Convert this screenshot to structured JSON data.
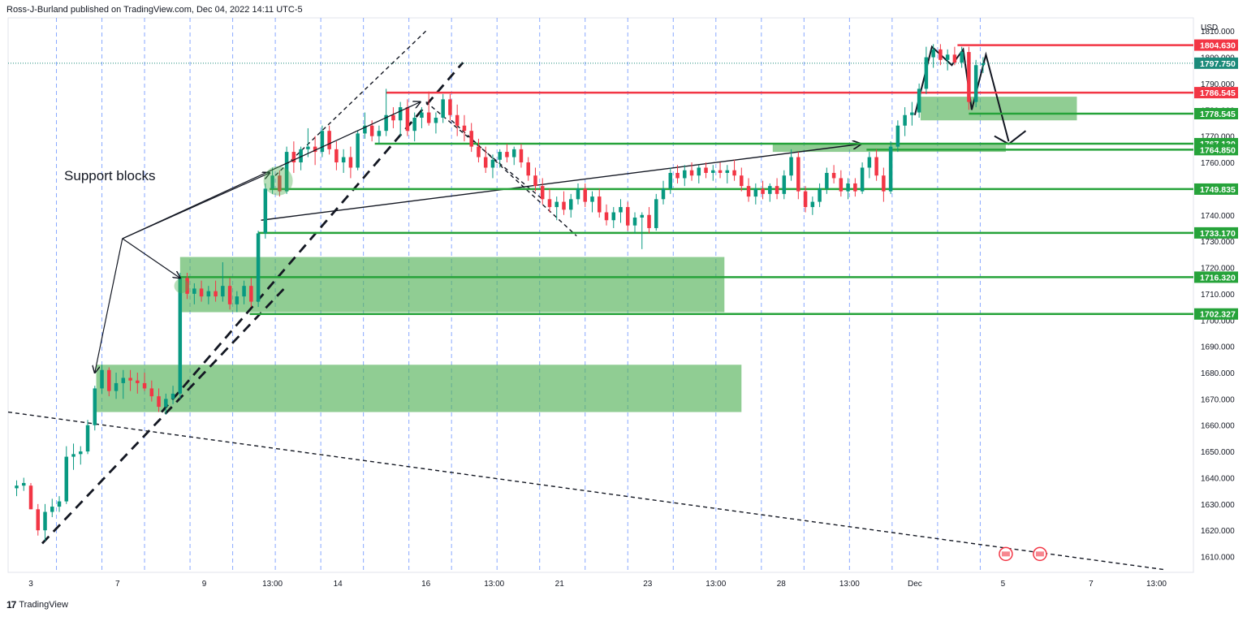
{
  "header": {
    "publisher_line": "Ross-J-Burland published on TradingView.com, Dec 04, 2022 14:11 UTC-5"
  },
  "footer": {
    "brand": "TradingView",
    "logo_icon": "tradingview-logo-icon"
  },
  "colors": {
    "up": "#089981",
    "down": "#f23645",
    "zone": "#4caf50",
    "support_line": "#26a33a",
    "resistance_line": "#f23645",
    "current_price": "#1b8a7a"
  },
  "chart_data": {
    "type": "candlestick",
    "currency": "USD",
    "y_range": [
      1604,
      1815
    ],
    "y_ticks": [
      1610,
      1620,
      1630,
      1640,
      1650,
      1660,
      1670,
      1680,
      1690,
      1700,
      1710,
      1720,
      1730,
      1740,
      1750,
      1760,
      1770,
      1780,
      1790,
      1800,
      1810
    ],
    "x_ticks": [
      {
        "label": "3",
        "x": 0.6
      },
      {
        "label": "7",
        "x": 3.65
      },
      {
        "label": "9",
        "x": 6.7
      },
      {
        "label": "13:00",
        "x": 9.1
      },
      {
        "label": "14",
        "x": 11.4
      },
      {
        "label": "16",
        "x": 14.5
      },
      {
        "label": "13:00",
        "x": 16.9
      },
      {
        "label": "21",
        "x": 19.2
      },
      {
        "label": "23",
        "x": 22.3
      },
      {
        "label": "13:00",
        "x": 24.7
      },
      {
        "label": "28",
        "x": 27.0
      },
      {
        "label": "13:00",
        "x": 29.4
      },
      {
        "label": "Dec",
        "x": 31.7
      },
      {
        "label": "5",
        "x": 34.8
      },
      {
        "label": "7",
        "x": 37.9
      },
      {
        "label": "13:00",
        "x": 40.2
      }
    ],
    "session_lines": [
      1.5,
      3.1,
      4.6,
      6.2,
      7.7,
      9.2,
      10.8,
      12.3,
      13.9,
      15.4,
      17.0,
      18.5,
      20.1,
      21.6,
      23.2,
      24.7,
      26.3,
      27.8,
      29.4,
      30.9,
      32.5,
      34.0
    ],
    "candles": [
      {
        "x": 0.1,
        "o": 1636,
        "h": 1639,
        "l": 1633,
        "c": 1637
      },
      {
        "x": 0.35,
        "o": 1637,
        "h": 1640,
        "l": 1635,
        "c": 1638
      },
      {
        "x": 0.6,
        "o": 1637,
        "h": 1638,
        "l": 1628,
        "c": 1628
      },
      {
        "x": 0.85,
        "o": 1628,
        "h": 1630,
        "l": 1618,
        "c": 1620
      },
      {
        "x": 1.1,
        "o": 1620,
        "h": 1630,
        "l": 1616,
        "c": 1627
      },
      {
        "x": 1.35,
        "o": 1627,
        "h": 1632,
        "l": 1625,
        "c": 1629
      },
      {
        "x": 1.6,
        "o": 1629,
        "h": 1633,
        "l": 1627,
        "c": 1631
      },
      {
        "x": 1.85,
        "o": 1631,
        "h": 1652,
        "l": 1630,
        "c": 1648
      },
      {
        "x": 2.1,
        "o": 1648,
        "h": 1653,
        "l": 1643,
        "c": 1649
      },
      {
        "x": 2.35,
        "o": 1649,
        "h": 1652,
        "l": 1645,
        "c": 1650
      },
      {
        "x": 2.6,
        "o": 1650,
        "h": 1662,
        "l": 1649,
        "c": 1660
      },
      {
        "x": 2.85,
        "o": 1660,
        "h": 1675,
        "l": 1658,
        "c": 1674
      },
      {
        "x": 3.1,
        "o": 1674,
        "h": 1683,
        "l": 1672,
        "c": 1681
      },
      {
        "x": 3.35,
        "o": 1681,
        "h": 1682,
        "l": 1671,
        "c": 1673
      },
      {
        "x": 3.6,
        "o": 1673,
        "h": 1680,
        "l": 1670,
        "c": 1676
      },
      {
        "x": 3.85,
        "o": 1676,
        "h": 1681,
        "l": 1670,
        "c": 1678
      },
      {
        "x": 4.1,
        "o": 1678,
        "h": 1681,
        "l": 1673,
        "c": 1677
      },
      {
        "x": 4.35,
        "o": 1677,
        "h": 1680,
        "l": 1672,
        "c": 1676
      },
      {
        "x": 4.6,
        "o": 1676,
        "h": 1680,
        "l": 1673,
        "c": 1674
      },
      {
        "x": 4.85,
        "o": 1674,
        "h": 1677,
        "l": 1669,
        "c": 1671
      },
      {
        "x": 5.1,
        "o": 1671,
        "h": 1674,
        "l": 1665,
        "c": 1667
      },
      {
        "x": 5.35,
        "o": 1667,
        "h": 1672,
        "l": 1664,
        "c": 1670
      },
      {
        "x": 5.6,
        "o": 1670,
        "h": 1675,
        "l": 1668,
        "c": 1672
      },
      {
        "x": 5.85,
        "o": 1672,
        "h": 1718,
        "l": 1670,
        "c": 1716
      },
      {
        "x": 6.1,
        "o": 1716,
        "h": 1718,
        "l": 1708,
        "c": 1710
      },
      {
        "x": 6.35,
        "o": 1710,
        "h": 1714,
        "l": 1706,
        "c": 1712
      },
      {
        "x": 6.6,
        "o": 1712,
        "h": 1715,
        "l": 1707,
        "c": 1709
      },
      {
        "x": 6.85,
        "o": 1709,
        "h": 1713,
        "l": 1706,
        "c": 1711
      },
      {
        "x": 7.1,
        "o": 1711,
        "h": 1715,
        "l": 1707,
        "c": 1709
      },
      {
        "x": 7.35,
        "o": 1709,
        "h": 1722,
        "l": 1707,
        "c": 1713
      },
      {
        "x": 7.6,
        "o": 1713,
        "h": 1716,
        "l": 1704,
        "c": 1706
      },
      {
        "x": 7.85,
        "o": 1706,
        "h": 1711,
        "l": 1703,
        "c": 1709
      },
      {
        "x": 8.1,
        "o": 1709,
        "h": 1715,
        "l": 1706,
        "c": 1713
      },
      {
        "x": 8.35,
        "o": 1713,
        "h": 1716,
        "l": 1705,
        "c": 1707
      },
      {
        "x": 8.6,
        "o": 1707,
        "h": 1734,
        "l": 1705,
        "c": 1733
      },
      {
        "x": 8.85,
        "o": 1733,
        "h": 1752,
        "l": 1731,
        "c": 1750
      },
      {
        "x": 9.1,
        "o": 1750,
        "h": 1758,
        "l": 1748,
        "c": 1755
      },
      {
        "x": 9.35,
        "o": 1755,
        "h": 1757,
        "l": 1747,
        "c": 1749
      },
      {
        "x": 9.6,
        "o": 1749,
        "h": 1766,
        "l": 1748,
        "c": 1764
      },
      {
        "x": 9.85,
        "o": 1764,
        "h": 1768,
        "l": 1756,
        "c": 1760
      },
      {
        "x": 10.1,
        "o": 1760,
        "h": 1766,
        "l": 1757,
        "c": 1765
      },
      {
        "x": 10.35,
        "o": 1765,
        "h": 1773,
        "l": 1762,
        "c": 1766
      },
      {
        "x": 10.6,
        "o": 1766,
        "h": 1770,
        "l": 1759,
        "c": 1764
      },
      {
        "x": 10.85,
        "o": 1764,
        "h": 1774,
        "l": 1762,
        "c": 1772
      },
      {
        "x": 11.1,
        "o": 1772,
        "h": 1774,
        "l": 1763,
        "c": 1765
      },
      {
        "x": 11.35,
        "o": 1765,
        "h": 1768,
        "l": 1757,
        "c": 1760
      },
      {
        "x": 11.6,
        "o": 1760,
        "h": 1765,
        "l": 1756,
        "c": 1762
      },
      {
        "x": 11.85,
        "o": 1762,
        "h": 1766,
        "l": 1754,
        "c": 1758
      },
      {
        "x": 12.1,
        "o": 1758,
        "h": 1772,
        "l": 1757,
        "c": 1771
      },
      {
        "x": 12.35,
        "o": 1771,
        "h": 1779,
        "l": 1769,
        "c": 1774
      },
      {
        "x": 12.6,
        "o": 1774,
        "h": 1776,
        "l": 1768,
        "c": 1770
      },
      {
        "x": 12.85,
        "o": 1770,
        "h": 1774,
        "l": 1767,
        "c": 1772
      },
      {
        "x": 13.1,
        "o": 1772,
        "h": 1788,
        "l": 1770,
        "c": 1778
      },
      {
        "x": 13.35,
        "o": 1778,
        "h": 1781,
        "l": 1773,
        "c": 1776
      },
      {
        "x": 13.6,
        "o": 1776,
        "h": 1783,
        "l": 1770,
        "c": 1781
      },
      {
        "x": 13.85,
        "o": 1781,
        "h": 1784,
        "l": 1770,
        "c": 1772
      },
      {
        "x": 14.1,
        "o": 1772,
        "h": 1779,
        "l": 1768,
        "c": 1777
      },
      {
        "x": 14.35,
        "o": 1777,
        "h": 1781,
        "l": 1773,
        "c": 1779
      },
      {
        "x": 14.6,
        "o": 1779,
        "h": 1787,
        "l": 1774,
        "c": 1775
      },
      {
        "x": 14.85,
        "o": 1775,
        "h": 1779,
        "l": 1771,
        "c": 1777
      },
      {
        "x": 15.1,
        "o": 1777,
        "h": 1786,
        "l": 1775,
        "c": 1784
      },
      {
        "x": 15.35,
        "o": 1784,
        "h": 1786,
        "l": 1776,
        "c": 1778
      },
      {
        "x": 15.6,
        "o": 1778,
        "h": 1782,
        "l": 1770,
        "c": 1774
      },
      {
        "x": 15.85,
        "o": 1774,
        "h": 1778,
        "l": 1768,
        "c": 1772
      },
      {
        "x": 16.1,
        "o": 1772,
        "h": 1775,
        "l": 1764,
        "c": 1766
      },
      {
        "x": 16.35,
        "o": 1766,
        "h": 1769,
        "l": 1760,
        "c": 1762
      },
      {
        "x": 16.6,
        "o": 1762,
        "h": 1766,
        "l": 1756,
        "c": 1758
      },
      {
        "x": 16.85,
        "o": 1758,
        "h": 1763,
        "l": 1754,
        "c": 1761
      },
      {
        "x": 17.1,
        "o": 1761,
        "h": 1765,
        "l": 1758,
        "c": 1764
      },
      {
        "x": 17.35,
        "o": 1764,
        "h": 1767,
        "l": 1760,
        "c": 1762
      },
      {
        "x": 17.6,
        "o": 1762,
        "h": 1766,
        "l": 1759,
        "c": 1765
      },
      {
        "x": 17.85,
        "o": 1765,
        "h": 1767,
        "l": 1758,
        "c": 1760
      },
      {
        "x": 18.1,
        "o": 1760,
        "h": 1762,
        "l": 1753,
        "c": 1755
      },
      {
        "x": 18.35,
        "o": 1755,
        "h": 1758,
        "l": 1749,
        "c": 1751
      },
      {
        "x": 18.6,
        "o": 1751,
        "h": 1754,
        "l": 1744,
        "c": 1746
      },
      {
        "x": 18.85,
        "o": 1746,
        "h": 1750,
        "l": 1741,
        "c": 1743
      },
      {
        "x": 19.1,
        "o": 1743,
        "h": 1747,
        "l": 1738,
        "c": 1745
      },
      {
        "x": 19.35,
        "o": 1745,
        "h": 1749,
        "l": 1740,
        "c": 1742
      },
      {
        "x": 19.6,
        "o": 1742,
        "h": 1748,
        "l": 1739,
        "c": 1746
      },
      {
        "x": 19.85,
        "o": 1746,
        "h": 1752,
        "l": 1744,
        "c": 1750
      },
      {
        "x": 20.1,
        "o": 1750,
        "h": 1752,
        "l": 1743,
        "c": 1745
      },
      {
        "x": 20.35,
        "o": 1745,
        "h": 1749,
        "l": 1741,
        "c": 1747
      },
      {
        "x": 20.6,
        "o": 1747,
        "h": 1750,
        "l": 1739,
        "c": 1741
      },
      {
        "x": 20.85,
        "o": 1741,
        "h": 1744,
        "l": 1736,
        "c": 1738
      },
      {
        "x": 21.1,
        "o": 1738,
        "h": 1743,
        "l": 1735,
        "c": 1741
      },
      {
        "x": 21.35,
        "o": 1741,
        "h": 1746,
        "l": 1737,
        "c": 1743
      },
      {
        "x": 21.6,
        "o": 1743,
        "h": 1745,
        "l": 1734,
        "c": 1736
      },
      {
        "x": 21.85,
        "o": 1736,
        "h": 1741,
        "l": 1733,
        "c": 1739
      },
      {
        "x": 22.1,
        "o": 1739,
        "h": 1741,
        "l": 1727,
        "c": 1740
      },
      {
        "x": 22.35,
        "o": 1740,
        "h": 1743,
        "l": 1733,
        "c": 1735
      },
      {
        "x": 22.6,
        "o": 1735,
        "h": 1748,
        "l": 1734,
        "c": 1746
      },
      {
        "x": 22.85,
        "o": 1746,
        "h": 1753,
        "l": 1744,
        "c": 1750
      },
      {
        "x": 23.1,
        "o": 1750,
        "h": 1758,
        "l": 1748,
        "c": 1756
      },
      {
        "x": 23.35,
        "o": 1756,
        "h": 1759,
        "l": 1752,
        "c": 1754
      },
      {
        "x": 23.6,
        "o": 1754,
        "h": 1759,
        "l": 1751,
        "c": 1757
      },
      {
        "x": 23.85,
        "o": 1757,
        "h": 1760,
        "l": 1753,
        "c": 1755
      },
      {
        "x": 24.1,
        "o": 1755,
        "h": 1759,
        "l": 1752,
        "c": 1758
      },
      {
        "x": 24.35,
        "o": 1758,
        "h": 1760,
        "l": 1754,
        "c": 1756
      },
      {
        "x": 24.6,
        "o": 1756,
        "h": 1759,
        "l": 1753,
        "c": 1757
      },
      {
        "x": 24.85,
        "o": 1757,
        "h": 1760,
        "l": 1754,
        "c": 1756
      },
      {
        "x": 25.1,
        "o": 1756,
        "h": 1759,
        "l": 1752,
        "c": 1757
      },
      {
        "x": 25.35,
        "o": 1757,
        "h": 1761,
        "l": 1753,
        "c": 1755
      },
      {
        "x": 25.6,
        "o": 1755,
        "h": 1758,
        "l": 1749,
        "c": 1751
      },
      {
        "x": 25.85,
        "o": 1751,
        "h": 1754,
        "l": 1745,
        "c": 1747
      },
      {
        "x": 26.1,
        "o": 1747,
        "h": 1752,
        "l": 1744,
        "c": 1750
      },
      {
        "x": 26.35,
        "o": 1750,
        "h": 1753,
        "l": 1746,
        "c": 1748
      },
      {
        "x": 26.6,
        "o": 1748,
        "h": 1752,
        "l": 1745,
        "c": 1751
      },
      {
        "x": 26.85,
        "o": 1751,
        "h": 1754,
        "l": 1746,
        "c": 1748
      },
      {
        "x": 27.1,
        "o": 1748,
        "h": 1757,
        "l": 1746,
        "c": 1755
      },
      {
        "x": 27.35,
        "o": 1755,
        "h": 1765,
        "l": 1753,
        "c": 1762
      },
      {
        "x": 27.6,
        "o": 1762,
        "h": 1764,
        "l": 1746,
        "c": 1749
      },
      {
        "x": 27.85,
        "o": 1749,
        "h": 1751,
        "l": 1741,
        "c": 1743
      },
      {
        "x": 28.1,
        "o": 1743,
        "h": 1747,
        "l": 1740,
        "c": 1745
      },
      {
        "x": 28.35,
        "o": 1745,
        "h": 1752,
        "l": 1743,
        "c": 1750
      },
      {
        "x": 28.6,
        "o": 1750,
        "h": 1758,
        "l": 1748,
        "c": 1756
      },
      {
        "x": 28.85,
        "o": 1756,
        "h": 1759,
        "l": 1752,
        "c": 1754
      },
      {
        "x": 29.1,
        "o": 1754,
        "h": 1757,
        "l": 1747,
        "c": 1749
      },
      {
        "x": 29.35,
        "o": 1749,
        "h": 1754,
        "l": 1746,
        "c": 1752
      },
      {
        "x": 29.6,
        "o": 1752,
        "h": 1754,
        "l": 1747,
        "c": 1749
      },
      {
        "x": 29.85,
        "o": 1749,
        "h": 1760,
        "l": 1748,
        "c": 1758
      },
      {
        "x": 30.1,
        "o": 1758,
        "h": 1764,
        "l": 1754,
        "c": 1762
      },
      {
        "x": 30.35,
        "o": 1762,
        "h": 1765,
        "l": 1753,
        "c": 1755
      },
      {
        "x": 30.6,
        "o": 1755,
        "h": 1758,
        "l": 1745,
        "c": 1749
      },
      {
        "x": 30.85,
        "o": 1749,
        "h": 1768,
        "l": 1748,
        "c": 1766
      },
      {
        "x": 31.1,
        "o": 1766,
        "h": 1776,
        "l": 1764,
        "c": 1774
      },
      {
        "x": 31.35,
        "o": 1774,
        "h": 1781,
        "l": 1770,
        "c": 1778
      },
      {
        "x": 31.6,
        "o": 1778,
        "h": 1783,
        "l": 1774,
        "c": 1779
      },
      {
        "x": 31.85,
        "o": 1779,
        "h": 1790,
        "l": 1777,
        "c": 1788
      },
      {
        "x": 32.1,
        "o": 1788,
        "h": 1804,
        "l": 1786,
        "c": 1800
      },
      {
        "x": 32.35,
        "o": 1800,
        "h": 1805,
        "l": 1796,
        "c": 1803
      },
      {
        "x": 32.6,
        "o": 1803,
        "h": 1805,
        "l": 1797,
        "c": 1799
      },
      {
        "x": 32.85,
        "o": 1799,
        "h": 1803,
        "l": 1795,
        "c": 1801
      },
      {
        "x": 33.1,
        "o": 1801,
        "h": 1804,
        "l": 1797,
        "c": 1798
      },
      {
        "x": 33.35,
        "o": 1798,
        "h": 1804,
        "l": 1796,
        "c": 1802
      },
      {
        "x": 33.6,
        "o": 1802,
        "h": 1804,
        "l": 1780,
        "c": 1783
      },
      {
        "x": 33.85,
        "o": 1783,
        "h": 1799,
        "l": 1781,
        "c": 1797
      },
      {
        "x": 34.1,
        "o": 1797,
        "h": 1800,
        "l": 1794,
        "c": 1797.75
      }
    ],
    "horizontal_levels": [
      {
        "price": 1804.63,
        "label": "1804.630",
        "kind": "resistance",
        "x_start": 33.2
      },
      {
        "price": 1797.75,
        "label": "1797.750",
        "kind": "current"
      },
      {
        "price": 1786.545,
        "label": "1786.545",
        "kind": "resistance",
        "x_start": 13.1
      },
      {
        "price": 1778.545,
        "label": "1778.545",
        "kind": "support",
        "x_start": 33.6
      },
      {
        "price": 1767.13,
        "label": "1767.130",
        "kind": "support",
        "x_start": 12.7
      },
      {
        "price": 1764.85,
        "label": "1764.850",
        "kind": "support",
        "x_start": 30.0
      },
      {
        "price": 1749.835,
        "label": "1749.835",
        "kind": "support",
        "x_start": 9.0
      },
      {
        "price": 1733.17,
        "label": "1733.170",
        "kind": "support",
        "x_start": 8.6
      },
      {
        "price": 1716.32,
        "label": "1716.320",
        "kind": "support",
        "x_start": 5.85
      },
      {
        "price": 1702.327,
        "label": "1702.327",
        "kind": "support",
        "x_start": 8.3
      }
    ],
    "zones": [
      {
        "x0": 2.9,
        "x1": 25.6,
        "y0": 1665,
        "y1": 1683
      },
      {
        "x0": 5.85,
        "x1": 25.0,
        "y0": 1703,
        "y1": 1724
      },
      {
        "x0": 26.7,
        "x1": 34.9,
        "y0": 1764,
        "y1": 1767
      },
      {
        "x0": 31.9,
        "x1": 37.4,
        "y0": 1776,
        "y1": 1785
      }
    ],
    "annotation": {
      "text": "Support blocks",
      "x": 3.2,
      "y": 1755
    }
  }
}
